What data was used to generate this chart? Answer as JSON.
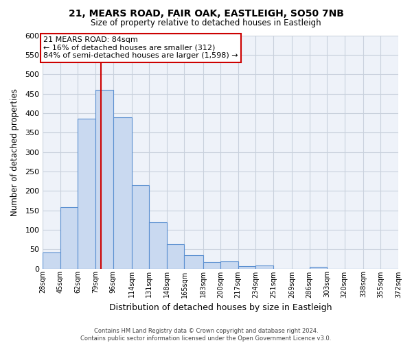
{
  "title": "21, MEARS ROAD, FAIR OAK, EASTLEIGH, SO50 7NB",
  "subtitle": "Size of property relative to detached houses in Eastleigh",
  "xlabel": "Distribution of detached houses by size in Eastleigh",
  "ylabel": "Number of detached properties",
  "bar_color": "#c9d9f0",
  "bar_edge_color": "#5a8fd0",
  "plot_bg_color": "#eef2f9",
  "background_color": "#ffffff",
  "grid_color": "#c8d0dc",
  "bin_edges": [
    28,
    45,
    62,
    79,
    96,
    114,
    131,
    148,
    165,
    183,
    200,
    217,
    234,
    251,
    269,
    286,
    303,
    320,
    338,
    355,
    372
  ],
  "bar_heights": [
    42,
    158,
    385,
    460,
    390,
    215,
    120,
    62,
    35,
    17,
    19,
    7,
    8,
    0,
    0,
    4,
    0,
    0,
    0,
    0
  ],
  "tick_labels": [
    "28sqm",
    "45sqm",
    "62sqm",
    "79sqm",
    "96sqm",
    "114sqm",
    "131sqm",
    "148sqm",
    "165sqm",
    "183sqm",
    "200sqm",
    "217sqm",
    "234sqm",
    "251sqm",
    "269sqm",
    "286sqm",
    "303sqm",
    "320sqm",
    "338sqm",
    "355sqm",
    "372sqm"
  ],
  "ylim": [
    0,
    600
  ],
  "yticks": [
    0,
    50,
    100,
    150,
    200,
    250,
    300,
    350,
    400,
    450,
    500,
    550,
    600
  ],
  "property_line_x": 84,
  "annotation_title": "21 MEARS ROAD: 84sqm",
  "annotation_line1": "← 16% of detached houses are smaller (312)",
  "annotation_line2": "84% of semi-detached houses are larger (1,598) →",
  "annotation_box_color": "#ffffff",
  "annotation_box_edge": "#cc0000",
  "red_line_color": "#cc0000",
  "footer_line1": "Contains HM Land Registry data © Crown copyright and database right 2024.",
  "footer_line2": "Contains public sector information licensed under the Open Government Licence v3.0."
}
